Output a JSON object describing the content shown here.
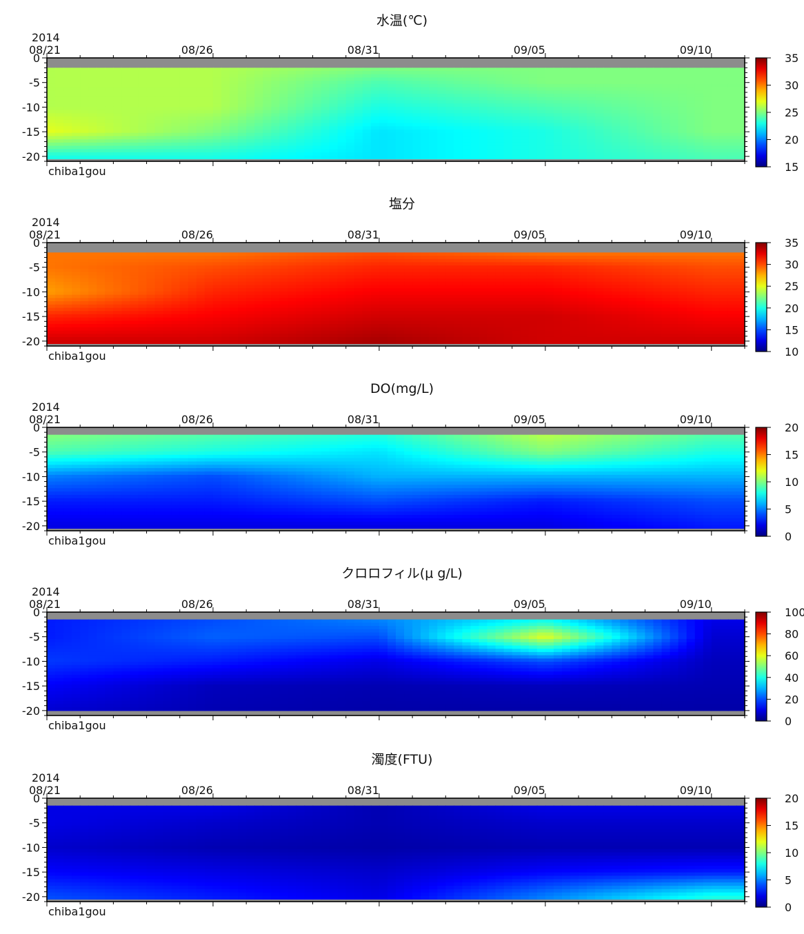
{
  "chart_data": [
    {
      "type": "heatmap",
      "title": "水温(℃)",
      "x_year_label": "2014",
      "x_tick_labels": [
        "08/21",
        "08/26",
        "08/31",
        "09/05",
        "09/10"
      ],
      "y_tick_labels": [
        "0",
        "-5",
        "-10",
        "-15",
        "-20"
      ],
      "ylim": [
        -21,
        0
      ],
      "station_label": "chiba1gou",
      "colorbar": {
        "min": 15,
        "max": 35,
        "tick_labels": [
          "35",
          "30",
          "25",
          "20",
          "15"
        ]
      },
      "surface_depth": -2,
      "bottom_depth": -20.5,
      "grid_x": [
        0,
        5,
        10,
        15,
        20
      ],
      "grid_y": [
        -2,
        -5,
        -10,
        -15,
        -20
      ],
      "values": [
        [
          26,
          26,
          25,
          25,
          25
        ],
        [
          26,
          26,
          24,
          25,
          25
        ],
        [
          26,
          26,
          23,
          24,
          25
        ],
        [
          27,
          25,
          22,
          23,
          25
        ],
        [
          23,
          23,
          22,
          23,
          24
        ]
      ]
    },
    {
      "type": "heatmap",
      "title": "塩分",
      "x_year_label": "2014",
      "x_tick_labels": [
        "08/21",
        "08/26",
        "08/31",
        "09/05",
        "09/10"
      ],
      "y_tick_labels": [
        "0",
        "-5",
        "-10",
        "-15",
        "-20"
      ],
      "ylim": [
        -21,
        0
      ],
      "station_label": "chiba1gou",
      "colorbar": {
        "min": 10,
        "max": 35,
        "tick_labels": [
          "35",
          "30",
          "25",
          "20",
          "15",
          "10"
        ]
      },
      "surface_depth": -2,
      "bottom_depth": -20.5,
      "grid_x": [
        0,
        5,
        10,
        15,
        20
      ],
      "grid_y": [
        -2,
        -5,
        -10,
        -15,
        -20
      ],
      "values": [
        [
          29,
          29,
          30,
          29,
          29
        ],
        [
          29,
          30,
          31,
          31,
          30
        ],
        [
          28,
          31,
          32,
          32,
          31
        ],
        [
          31,
          32,
          33,
          33,
          32
        ],
        [
          33,
          33,
          34,
          33,
          33
        ]
      ]
    },
    {
      "type": "heatmap",
      "title": "DO(mg/L)",
      "x_year_label": "2014",
      "x_tick_labels": [
        "08/21",
        "08/26",
        "08/31",
        "09/05",
        "09/10"
      ],
      "y_tick_labels": [
        "0",
        "-5",
        "-10",
        "-15",
        "-20"
      ],
      "ylim": [
        -21,
        0
      ],
      "station_label": "chiba1gou",
      "colorbar": {
        "min": 0,
        "max": 20,
        "tick_labels": [
          "20",
          "15",
          "10",
          "5",
          "0"
        ]
      },
      "surface_depth": -1.5,
      "bottom_depth": -20.5,
      "grid_x": [
        0,
        5,
        10,
        15,
        20
      ],
      "grid_y": [
        -2,
        -5,
        -10,
        -15,
        -20
      ],
      "values": [
        [
          10,
          9,
          8,
          11,
          9
        ],
        [
          9,
          8,
          7,
          10,
          8
        ],
        [
          5,
          4,
          6,
          6,
          6
        ],
        [
          3,
          3,
          4,
          3,
          4
        ],
        [
          2,
          2,
          2,
          2,
          3
        ]
      ]
    },
    {
      "type": "heatmap",
      "title": "クロロフィル(μ g/L)",
      "x_year_label": "2014",
      "x_tick_labels": [
        "08/21",
        "08/26",
        "08/31",
        "09/05",
        "09/10"
      ],
      "y_tick_labels": [
        "0",
        "-5",
        "-10",
        "-15",
        "-20"
      ],
      "ylim": [
        -21,
        0
      ],
      "station_label": "chiba1gou",
      "colorbar": {
        "min": 0,
        "max": 100,
        "tick_labels": [
          "100",
          "80",
          "60",
          "40",
          "20",
          "0"
        ]
      },
      "surface_depth": -1.5,
      "bottom_depth": -20,
      "grid_x": [
        0,
        5,
        10,
        15,
        20
      ],
      "grid_y": [
        -2,
        -5,
        -10,
        -15,
        -20
      ],
      "values": [
        [
          15,
          20,
          25,
          40,
          10
        ],
        [
          15,
          22,
          20,
          60,
          8
        ],
        [
          18,
          15,
          10,
          20,
          6
        ],
        [
          12,
          6,
          5,
          6,
          5
        ],
        [
          8,
          5,
          4,
          4,
          4
        ]
      ]
    },
    {
      "type": "heatmap",
      "title": "濁度(FTU)",
      "x_year_label": "2014",
      "x_tick_labels": [
        "08/21",
        "08/26",
        "08/31",
        "09/05",
        "09/10"
      ],
      "y_tick_labels": [
        "0",
        "-5",
        "-10",
        "-15",
        "-20"
      ],
      "ylim": [
        -21,
        0
      ],
      "station_label": "chiba1gou",
      "colorbar": {
        "min": 0,
        "max": 20,
        "tick_labels": [
          "20",
          "15",
          "10",
          "5",
          "0"
        ]
      },
      "surface_depth": -1.5,
      "bottom_depth": -20.5,
      "grid_x": [
        0,
        5,
        10,
        15,
        20
      ],
      "grid_y": [
        -2,
        -5,
        -10,
        -15,
        -20
      ],
      "values": [
        [
          2,
          2,
          1,
          2,
          2
        ],
        [
          2,
          1.5,
          1,
          1.5,
          1.5
        ],
        [
          1.5,
          1,
          0.8,
          1,
          1
        ],
        [
          2.5,
          2,
          1.5,
          2.5,
          3
        ],
        [
          4,
          3,
          2,
          5,
          8
        ]
      ]
    }
  ]
}
